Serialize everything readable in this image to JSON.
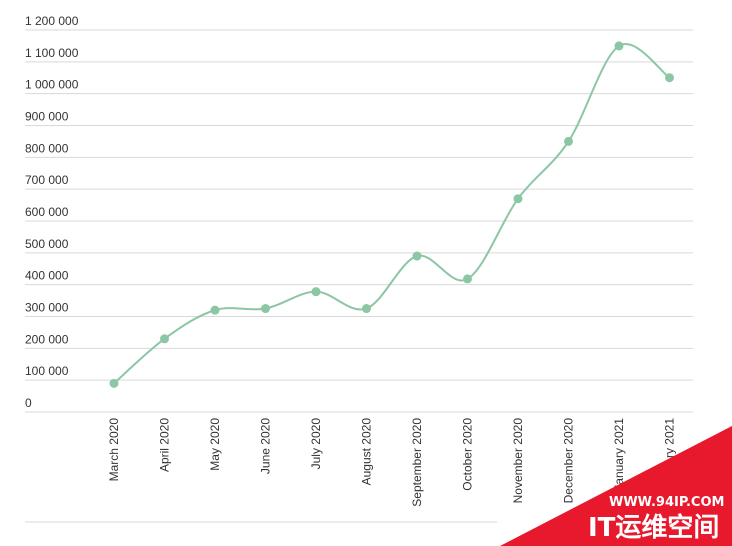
{
  "chart_data": {
    "type": "line",
    "categories": [
      "March 2020",
      "April 2020",
      "May 2020",
      "June 2020",
      "July 2020",
      "August 2020",
      "September 2020",
      "October 2020",
      "November 2020",
      "December 2020",
      "January 2021",
      "February 2021"
    ],
    "series": [
      {
        "values": [
          90000,
          230000,
          320000,
          325000,
          378000,
          325000,
          490000,
          418000,
          670000,
          850000,
          1150000,
          1050000
        ]
      }
    ],
    "y_ticks": [
      "0",
      "100 000",
      "200 000",
      "300 000",
      "400 000",
      "500 000",
      "600 000",
      "700 000",
      "800 000",
      "900 000",
      "1 000 000",
      "1 100 000",
      "1 200 000"
    ],
    "ylim": [
      0,
      1200000
    ],
    "grid": true,
    "legend": "none",
    "colors": {
      "series": "#8cc7a5",
      "grid": "#d9d9d9",
      "text": "#333333",
      "watermark": "#e8192c"
    }
  },
  "watermark": {
    "url_text": "WWW.94IP.COM",
    "brand_text": "IT运维空间"
  }
}
